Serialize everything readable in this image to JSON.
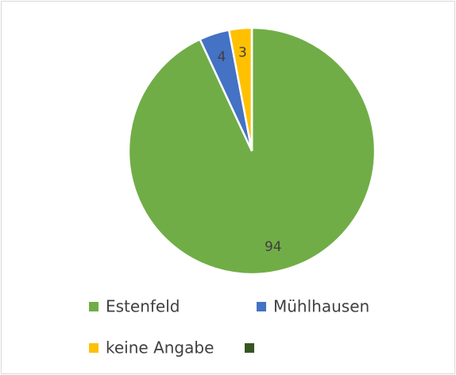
{
  "chart_data": {
    "type": "pie",
    "categories": [
      "Estenfeld",
      "Mühlhausen",
      "keine Angabe",
      null
    ],
    "values": [
      94,
      4,
      3,
      0
    ],
    "colors": [
      "#70ad47",
      "#4472c4",
      "#ffc000",
      "#375623"
    ],
    "legend": "bottom"
  }
}
